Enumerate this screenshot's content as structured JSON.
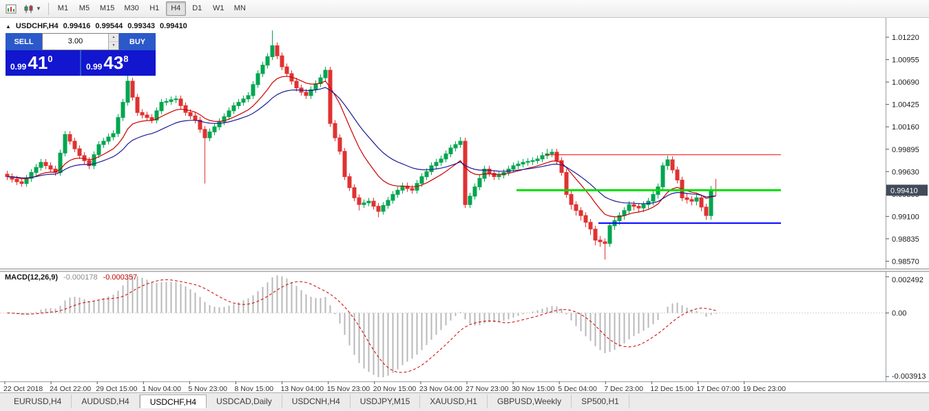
{
  "toolbar": {
    "timeframes": [
      "M1",
      "M5",
      "M15",
      "M30",
      "H1",
      "H4",
      "D1",
      "W1",
      "MN"
    ],
    "active_timeframe": "H4"
  },
  "chart": {
    "one_click_toggle": "▲",
    "title": {
      "symbol_tf": "USDCHF,H4",
      "open": "0.99416",
      "high": "0.99544",
      "low": "0.99343",
      "close": "0.99410"
    },
    "trade_panel": {
      "sell_label": "SELL",
      "buy_label": "BUY",
      "volume": "3.00",
      "spin_up": "▲",
      "spin_down": "▼",
      "sell_price_small": "0.99",
      "sell_price_big": "41",
      "sell_price_sup": "0",
      "buy_price_small": "0.99",
      "buy_price_big": "43",
      "buy_price_sup": "8"
    },
    "current_price": "0.99410"
  },
  "macd": {
    "label": "MACD(12,26,9)",
    "value1": "-0.000178",
    "value2": "-0.000357",
    "axis": [
      "0.002492",
      "0.00",
      "-0.003913"
    ]
  },
  "tabs": {
    "items": [
      "EURUSD,H4",
      "AUDUSD,H4",
      "USDCHF,H4",
      "USDCAD,Daily",
      "USDCNH,H4",
      "USDJPY,M15",
      "XAUUSD,H1",
      "GBPUSD,Weekly",
      "SP500,H1"
    ],
    "active": "USDCHF,H4"
  },
  "chart_data": {
    "type": "candlestick",
    "symbol": "USDCHF",
    "timeframe": "H4",
    "up_color": "#00A650",
    "down_color": "#E03232",
    "y_axis": {
      "min": 0.985,
      "max": 1.014,
      "tick_step": 0.00265
    },
    "price_tick_labels": [
      "1.01220",
      "1.00955",
      "1.00690",
      "1.00425",
      "1.00160",
      "0.99895",
      "0.99630",
      "0.99365",
      "0.99100",
      "0.98835",
      "0.98570"
    ],
    "x_tick_labels": [
      "22 Oct 2018",
      "24 Oct 22:00",
      "29 Oct 15:00",
      "1 Nov 04:00",
      "5 Nov 23:00",
      "8 Nov 15:00",
      "13 Nov 04:00",
      "15 Nov 23:00",
      "20 Nov 15:00",
      "23 Nov 04:00",
      "27 Nov 23:00",
      "30 Nov 15:00",
      "5 Dec 04:00",
      "7 Dec 23:00",
      "12 Dec 15:00",
      "17 Dec 07:00",
      "19 Dec 23:00"
    ],
    "ma_overlays": [
      {
        "name": "fast-ma",
        "period": 12,
        "color": "#CC0000"
      },
      {
        "name": "slow-ma",
        "period": 24,
        "color": "#1C1C94"
      }
    ],
    "hlines": [
      {
        "price": 0.9983,
        "color": "#FF0000",
        "width": 1,
        "from": 112
      },
      {
        "price": 0.9941,
        "color": "#00DD00",
        "width": 3,
        "from": 106
      },
      {
        "price": 0.9902,
        "color": "#0000FF",
        "width": 2,
        "from": 123
      }
    ],
    "macd_params": {
      "fast": 12,
      "slow": 26,
      "signal": 9
    },
    "macd_scale": {
      "max": 0.002492,
      "min": -0.003913
    },
    "candles": [
      [
        0.996,
        0.9964,
        0.9953,
        0.9957
      ],
      [
        0.9957,
        0.9961,
        0.995,
        0.9954
      ],
      [
        0.9954,
        0.9958,
        0.9947,
        0.9951
      ],
      [
        0.9951,
        0.9955,
        0.9945,
        0.9949
      ],
      [
        0.9949,
        0.9959,
        0.9945,
        0.9955
      ],
      [
        0.9955,
        0.9966,
        0.9951,
        0.9962
      ],
      [
        0.9962,
        0.9972,
        0.9958,
        0.9968
      ],
      [
        0.9968,
        0.9978,
        0.9964,
        0.9974
      ],
      [
        0.9974,
        0.9978,
        0.9966,
        0.997
      ],
      [
        0.997,
        0.9974,
        0.9962,
        0.9966
      ],
      [
        0.9966,
        0.997,
        0.9958,
        0.9962
      ],
      [
        0.9962,
        0.9989,
        0.9958,
        0.9985
      ],
      [
        0.9985,
        1.0011,
        0.9981,
        1.0007
      ],
      [
        1.0007,
        1.0011,
        0.9995,
        0.9999
      ],
      [
        0.9999,
        1.0003,
        0.9986,
        0.999
      ],
      [
        0.999,
        0.9994,
        0.9978,
        0.9982
      ],
      [
        0.9982,
        0.9986,
        0.9972,
        0.9976
      ],
      [
        0.9976,
        0.998,
        0.9966,
        0.997
      ],
      [
        0.997,
        0.9987,
        0.9966,
        0.9983
      ],
      [
        0.9983,
        0.9999,
        0.9979,
        0.9995
      ],
      [
        0.9995,
        1.0003,
        0.9991,
        0.9999
      ],
      [
        0.9999,
        1.0008,
        0.9995,
        1.0004
      ],
      [
        1.0004,
        1.0012,
        1.0,
        1.0008
      ],
      [
        1.0008,
        1.0031,
        1.0004,
        1.0027
      ],
      [
        1.0027,
        1.0049,
        1.0023,
        1.0045
      ],
      [
        1.0045,
        1.0077,
        1.0041,
        1.007
      ],
      [
        1.007,
        1.0074,
        1.0047,
        1.0051
      ],
      [
        1.0051,
        1.0055,
        1.0029,
        1.0033
      ],
      [
        1.0033,
        1.0037,
        1.0026,
        1.003
      ],
      [
        1.003,
        1.0034,
        1.0023,
        1.0027
      ],
      [
        1.0027,
        1.0031,
        1.002,
        1.0024
      ],
      [
        1.0024,
        1.0039,
        1.002,
        1.0035
      ],
      [
        1.0035,
        1.0049,
        1.0031,
        1.0045
      ],
      [
        1.0045,
        1.005,
        1.0041,
        1.0046
      ],
      [
        1.0046,
        1.0052,
        1.0042,
        1.0048
      ],
      [
        1.0048,
        1.0053,
        1.0044,
        1.0049
      ],
      [
        1.0049,
        1.0053,
        1.0037,
        1.0041
      ],
      [
        1.0041,
        1.0045,
        1.0029,
        1.0033
      ],
      [
        1.0033,
        1.0037,
        1.0025,
        1.0029
      ],
      [
        1.0029,
        1.0033,
        1.002,
        1.0024
      ],
      [
        1.0024,
        1.0028,
        1.0009,
        1.0013
      ],
      [
        1.0013,
        1.0017,
        0.9949,
        1.0003
      ],
      [
        1.0003,
        1.0014,
        0.9999,
        1.001
      ],
      [
        1.001,
        1.002,
        1.0006,
        1.0016
      ],
      [
        1.0016,
        1.0026,
        1.0012,
        1.0022
      ],
      [
        1.0022,
        1.0032,
        1.0018,
        1.0028
      ],
      [
        1.0028,
        1.0039,
        1.0024,
        1.0035
      ],
      [
        1.0035,
        1.0045,
        1.0031,
        1.0041
      ],
      [
        1.0041,
        1.0049,
        1.0037,
        1.0045
      ],
      [
        1.0045,
        1.0053,
        1.0041,
        1.0049
      ],
      [
        1.0049,
        1.0057,
        1.0045,
        1.0053
      ],
      [
        1.0053,
        1.007,
        1.0049,
        1.0066
      ],
      [
        1.0066,
        1.0083,
        1.0062,
        1.0079
      ],
      [
        1.0079,
        1.0093,
        1.0075,
        1.0089
      ],
      [
        1.0089,
        1.0103,
        1.0085,
        1.0099
      ],
      [
        1.0099,
        1.013,
        1.0095,
        1.0112
      ],
      [
        1.0112,
        1.0116,
        1.0096,
        1.01
      ],
      [
        1.01,
        1.0104,
        1.0083,
        1.0087
      ],
      [
        1.0087,
        1.0091,
        1.0075,
        1.0079
      ],
      [
        1.0079,
        1.0083,
        1.0066,
        1.007
      ],
      [
        1.007,
        1.0074,
        1.0058,
        1.0062
      ],
      [
        1.0062,
        1.0066,
        1.0053,
        1.0057
      ],
      [
        1.0057,
        1.0061,
        1.0049,
        1.0053
      ],
      [
        1.0053,
        1.0064,
        1.0049,
        1.006
      ],
      [
        1.006,
        1.0071,
        1.0056,
        1.0067
      ],
      [
        1.0067,
        1.0078,
        1.0063,
        1.0074
      ],
      [
        1.0074,
        1.0087,
        1.007,
        1.0083
      ],
      [
        1.0083,
        1.0087,
        1.0016,
        1.002
      ],
      [
        1.002,
        1.0024,
        0.9999,
        1.0003
      ],
      [
        1.0003,
        1.0007,
        0.9983,
        0.9987
      ],
      [
        0.9987,
        0.9991,
        0.9953,
        0.9957
      ],
      [
        0.9957,
        0.9961,
        0.994,
        0.9944
      ],
      [
        0.9944,
        0.9948,
        0.9928,
        0.9932
      ],
      [
        0.9932,
        0.9936,
        0.9917,
        0.9924
      ],
      [
        0.9924,
        0.993,
        0.992,
        0.9926
      ],
      [
        0.9926,
        0.9932,
        0.9922,
        0.9928
      ],
      [
        0.9928,
        0.9932,
        0.9918,
        0.9922
      ],
      [
        0.9922,
        0.9926,
        0.9909,
        0.9916
      ],
      [
        0.9916,
        0.9927,
        0.9912,
        0.9923
      ],
      [
        0.9923,
        0.9933,
        0.9919,
        0.9929
      ],
      [
        0.9929,
        0.994,
        0.9925,
        0.9936
      ],
      [
        0.9936,
        0.9945,
        0.9932,
        0.9941
      ],
      [
        0.9941,
        0.995,
        0.9937,
        0.9946
      ],
      [
        0.9946,
        0.995,
        0.9939,
        0.9943
      ],
      [
        0.9943,
        0.9947,
        0.9937,
        0.9941
      ],
      [
        0.9941,
        0.9953,
        0.9937,
        0.9949
      ],
      [
        0.9949,
        0.9961,
        0.9945,
        0.9957
      ],
      [
        0.9957,
        0.9967,
        0.9953,
        0.9963
      ],
      [
        0.9963,
        0.9974,
        0.9959,
        0.997
      ],
      [
        0.997,
        0.9978,
        0.9966,
        0.9974
      ],
      [
        0.9974,
        0.9982,
        0.997,
        0.9978
      ],
      [
        0.9978,
        0.9988,
        0.9974,
        0.9984
      ],
      [
        0.9984,
        0.9995,
        0.998,
        0.9991
      ],
      [
        0.9991,
        0.9999,
        0.9987,
        0.9995
      ],
      [
        0.9995,
        1.0004,
        0.9991,
        0.9999
      ],
      [
        0.9999,
        1.0003,
        0.992,
        0.9924
      ],
      [
        0.9924,
        0.9938,
        0.992,
        0.9934
      ],
      [
        0.9934,
        0.9949,
        0.993,
        0.9945
      ],
      [
        0.9945,
        0.9959,
        0.9941,
        0.9955
      ],
      [
        0.9955,
        0.997,
        0.9951,
        0.9966
      ],
      [
        0.9966,
        0.997,
        0.9957,
        0.9961
      ],
      [
        0.9961,
        0.9965,
        0.9953,
        0.9957
      ],
      [
        0.9957,
        0.9963,
        0.9953,
        0.9959
      ],
      [
        0.9959,
        0.9966,
        0.9955,
        0.9962
      ],
      [
        0.9962,
        0.997,
        0.9958,
        0.9966
      ],
      [
        0.9966,
        0.9974,
        0.9962,
        0.997
      ],
      [
        0.997,
        0.9976,
        0.9966,
        0.9972
      ],
      [
        0.9972,
        0.9978,
        0.9968,
        0.9974
      ],
      [
        0.9974,
        0.9979,
        0.997,
        0.9975
      ],
      [
        0.9975,
        0.998,
        0.9971,
        0.9976
      ],
      [
        0.9976,
        0.9982,
        0.9972,
        0.9978
      ],
      [
        0.9978,
        0.9986,
        0.9974,
        0.9982
      ],
      [
        0.9982,
        0.999,
        0.9978,
        0.9984
      ],
      [
        0.9984,
        0.999,
        0.998,
        0.9986
      ],
      [
        0.9986,
        0.999,
        0.9972,
        0.9976
      ],
      [
        0.9976,
        0.998,
        0.9958,
        0.9962
      ],
      [
        0.9962,
        0.9966,
        0.9932,
        0.9936
      ],
      [
        0.9936,
        0.994,
        0.9918,
        0.9924
      ],
      [
        0.9924,
        0.9928,
        0.9911,
        0.9917
      ],
      [
        0.9917,
        0.9921,
        0.9905,
        0.9911
      ],
      [
        0.9911,
        0.9915,
        0.9897,
        0.9903
      ],
      [
        0.9903,
        0.9907,
        0.9888,
        0.9895
      ],
      [
        0.9895,
        0.9899,
        0.9876,
        0.9882
      ],
      [
        0.9882,
        0.9887,
        0.9874,
        0.988
      ],
      [
        0.988,
        0.9884,
        0.9859,
        0.9878
      ],
      [
        0.9878,
        0.9903,
        0.9874,
        0.9899
      ],
      [
        0.9899,
        0.9909,
        0.9894,
        0.9905
      ],
      [
        0.9905,
        0.9915,
        0.99,
        0.9911
      ],
      [
        0.9911,
        0.9921,
        0.9906,
        0.9917
      ],
      [
        0.9917,
        0.9928,
        0.9912,
        0.9924
      ],
      [
        0.9924,
        0.9928,
        0.9917,
        0.9922
      ],
      [
        0.9922,
        0.9926,
        0.9915,
        0.992
      ],
      [
        0.992,
        0.9928,
        0.9915,
        0.9924
      ],
      [
        0.9924,
        0.9932,
        0.9919,
        0.9928
      ],
      [
        0.9928,
        0.994,
        0.9923,
        0.9936
      ],
      [
        0.9936,
        0.9949,
        0.9931,
        0.9945
      ],
      [
        0.9945,
        0.9974,
        0.9941,
        0.997
      ],
      [
        0.997,
        0.9982,
        0.9965,
        0.9977
      ],
      [
        0.9977,
        0.9981,
        0.9961,
        0.9965
      ],
      [
        0.9965,
        0.9969,
        0.9949,
        0.9953
      ],
      [
        0.9953,
        0.9957,
        0.9928,
        0.9932
      ],
      [
        0.9932,
        0.9937,
        0.9925,
        0.993
      ],
      [
        0.993,
        0.9934,
        0.9923,
        0.9928
      ],
      [
        0.9928,
        0.9937,
        0.9923,
        0.9932
      ],
      [
        0.9932,
        0.9936,
        0.9916,
        0.9921
      ],
      [
        0.9921,
        0.9925,
        0.9906,
        0.9911
      ],
      [
        0.9911,
        0.9946,
        0.9906,
        0.99416
      ],
      [
        0.99416,
        0.99544,
        0.99343,
        0.9941
      ]
    ]
  }
}
